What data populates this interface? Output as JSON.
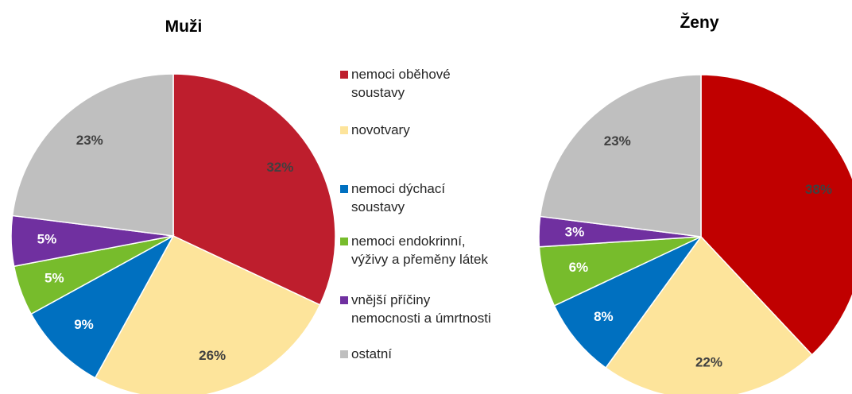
{
  "legend": {
    "categories": [
      "nemoci oběhové\nsoustavy",
      "novotvary",
      "nemoci dýchací\nsoustavy",
      "nemoci endokrinní,\nvýživy a přeměny látek",
      "vnější příčiny\nnemocnosti a úmrtnosti",
      "ostatní"
    ]
  },
  "chart_data": [
    {
      "type": "pie",
      "title": "Muži",
      "values": [
        32,
        26,
        9,
        5,
        5,
        23
      ],
      "value_labels": [
        "32%",
        "26%",
        "9%",
        "5%",
        "5%",
        "23%"
      ],
      "colors": [
        "#be1e2d",
        "#fde49b",
        "#0070c0",
        "#77bc2c",
        "#7030a0",
        "#bfbfbf"
      ]
    },
    {
      "type": "pie",
      "title": "Ženy",
      "values": [
        38,
        22,
        8,
        6,
        3,
        23
      ],
      "value_labels": [
        "38%",
        "22%",
        "8%",
        "6%",
        "3%",
        "23%"
      ],
      "colors": [
        "#c00000",
        "#fde49b",
        "#0070c0",
        "#77bc2c",
        "#7030a0",
        "#bfbfbf"
      ]
    }
  ]
}
